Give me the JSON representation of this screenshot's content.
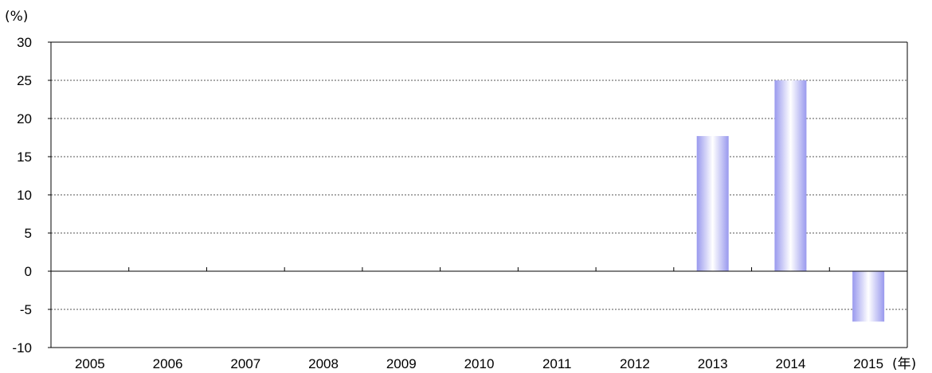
{
  "chart_data": {
    "type": "bar",
    "y_unit_label": "(%)",
    "x_unit_label": "(年)",
    "categories": [
      "2005",
      "2006",
      "2007",
      "2008",
      "2009",
      "2010",
      "2011",
      "2012",
      "2013",
      "2014",
      "2015"
    ],
    "values": [
      null,
      null,
      null,
      null,
      null,
      null,
      null,
      null,
      17.7,
      25.0,
      -6.6
    ],
    "ylim": [
      -10,
      30
    ],
    "yticks": [
      "30",
      "25",
      "20",
      "15",
      "10",
      "5",
      "0",
      "-5",
      "-10"
    ],
    "grid": true,
    "legend": "none",
    "colors": {
      "bar_edge": "#9999ee",
      "bar_center": "#ffffff",
      "axis": "#000000",
      "grid": "#555555"
    }
  }
}
